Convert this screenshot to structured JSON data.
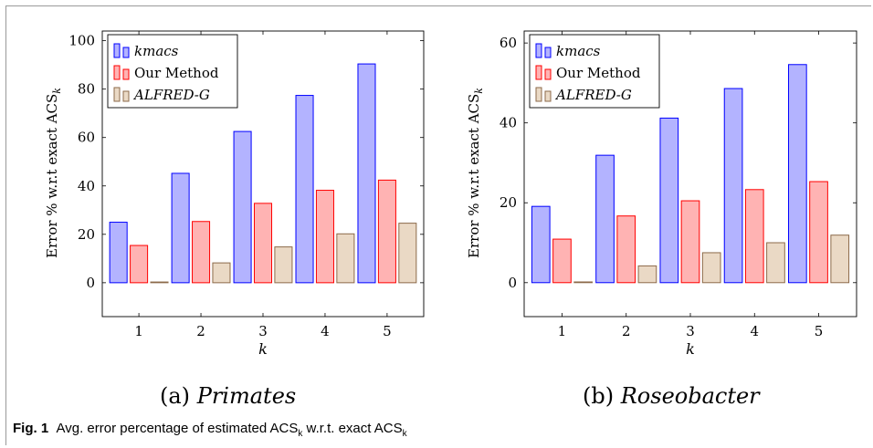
{
  "chart_data": [
    {
      "type": "bar",
      "categories": [
        "1",
        "2",
        "3",
        "4",
        "5"
      ],
      "series": [
        {
          "name": "kmacs",
          "values": [
            25,
            45.2,
            62.5,
            77.4,
            90.4
          ],
          "fill": "#b3b3ff",
          "stroke": "#0000ff"
        },
        {
          "name": "Our Method",
          "values": [
            15.4,
            25.3,
            32.8,
            38.2,
            42.4
          ],
          "fill": "#ffb3b3",
          "stroke": "#ff0000"
        },
        {
          "name": "ALFRED-G",
          "values": [
            0,
            8.2,
            14.8,
            20.2,
            24.6
          ],
          "fill": "#ead9c5",
          "stroke": "#8c6a4a"
        }
      ],
      "xlabel": "k",
      "ylabel": "Error % w.r.t exact ACS",
      "ylabel_sub": "k",
      "ylim": [
        -14,
        104
      ],
      "yticks": [
        "0",
        "20",
        "40",
        "60",
        "80",
        "100"
      ],
      "grid": false,
      "legend": "top-left",
      "subcaption_label": "(a)",
      "subcaption_name": "Primates"
    },
    {
      "type": "bar",
      "categories": [
        "1",
        "2",
        "3",
        "4",
        "5"
      ],
      "series": [
        {
          "name": "kmacs",
          "values": [
            19.1,
            31.9,
            41.2,
            48.6,
            54.6
          ],
          "fill": "#b3b3ff",
          "stroke": "#0000ff"
        },
        {
          "name": "Our Method",
          "values": [
            10.9,
            16.7,
            20.5,
            23.3,
            25.3
          ],
          "fill": "#ffb3b3",
          "stroke": "#ff0000"
        },
        {
          "name": "ALFRED-G",
          "values": [
            0,
            4.2,
            7.5,
            10,
            11.9
          ],
          "fill": "#ead9c5",
          "stroke": "#8c6a4a"
        }
      ],
      "xlabel": "k",
      "ylabel": "Error % w.r.t exact ACS",
      "ylabel_sub": "k",
      "ylim": [
        -8.5,
        63
      ],
      "yticks": [
        "0",
        "20",
        "40",
        "60"
      ],
      "grid": false,
      "legend": "top-left",
      "subcaption_label": "(b)",
      "subcaption_name": "Roseobacter"
    }
  ],
  "caption": {
    "fig_label": "Fig. 1",
    "text_a": "Avg. error percentage of estimated ACS",
    "sub_a": "k",
    "text_b": " w.r.t. exact ACS",
    "sub_b": "k"
  }
}
